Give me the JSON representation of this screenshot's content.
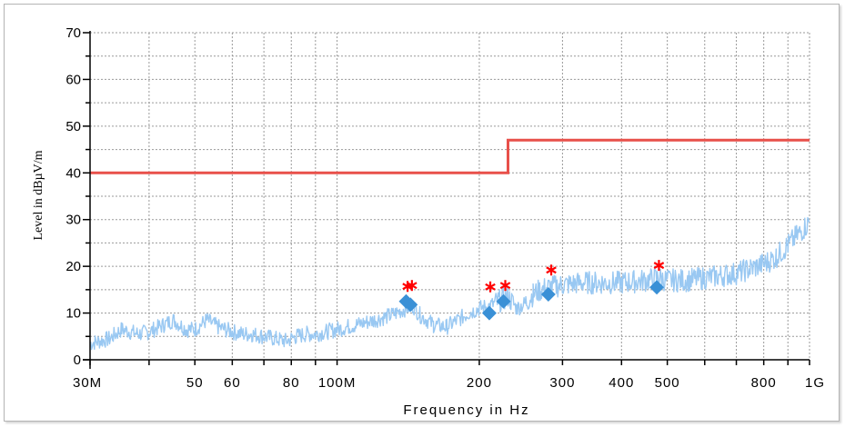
{
  "chart_data": {
    "type": "line",
    "x_scale": "log",
    "xlabel": "Frequency in Hz",
    "ylabel": "Level in dBµV/m",
    "xlim": [
      30000000,
      1000000000
    ],
    "ylim": [
      0,
      70
    ],
    "grid": true,
    "x_ticks": [
      {
        "value": 30000000,
        "label": "30M"
      },
      {
        "value": 50000000,
        "label": "50"
      },
      {
        "value": 60000000,
        "label": "60"
      },
      {
        "value": 80000000,
        "label": "80"
      },
      {
        "value": 100000000,
        "label": "100M"
      },
      {
        "value": 200000000,
        "label": "200"
      },
      {
        "value": 300000000,
        "label": "300"
      },
      {
        "value": 400000000,
        "label": "400"
      },
      {
        "value": 500000000,
        "label": "500"
      },
      {
        "value": 800000000,
        "label": "800"
      },
      {
        "value": 1000000000,
        "label": "1G"
      }
    ],
    "y_ticks": [
      0,
      10,
      20,
      30,
      40,
      50,
      60,
      70
    ],
    "series": [
      {
        "kind": "limit",
        "color": "#e8504a",
        "x": [
          30000000,
          230000000,
          230000000,
          1000000000
        ],
        "y": [
          40,
          40,
          47,
          47
        ]
      },
      {
        "kind": "spectrum",
        "color": "#99c8f2",
        "x": [
          30000000,
          33000000,
          35000000,
          38000000,
          40000000,
          43000000,
          45000000,
          48000000,
          50000000,
          53000000,
          56000000,
          60000000,
          63000000,
          66000000,
          70000000,
          74000000,
          78000000,
          82000000,
          86000000,
          90000000,
          95000000,
          100000000,
          110000000,
          120000000,
          130000000,
          140000000,
          145000000,
          150000000,
          160000000,
          170000000,
          180000000,
          190000000,
          200000000,
          210000000,
          220000000,
          230000000,
          240000000,
          250000000,
          260000000,
          270000000,
          280000000,
          300000000,
          330000000,
          360000000,
          400000000,
          450000000,
          480000000,
          500000000,
          550000000,
          600000000,
          650000000,
          700000000,
          750000000,
          800000000,
          850000000,
          900000000,
          950000000,
          1000000000
        ],
        "y": [
          3.5,
          4.5,
          6.5,
          5.5,
          6,
          7.5,
          8.5,
          6.5,
          6.5,
          8.5,
          7,
          6,
          5.5,
          5.5,
          5,
          4.5,
          4,
          5,
          5.5,
          5.5,
          6,
          6.5,
          7.5,
          8.5,
          9.5,
          11,
          11.5,
          9.5,
          7.5,
          7,
          8.5,
          10,
          11,
          11.5,
          12.5,
          13.5,
          11,
          12,
          14,
          15,
          15.5,
          16,
          16.5,
          16.5,
          16.5,
          17,
          17.5,
          17,
          17,
          17.5,
          18,
          18.5,
          19.5,
          20.5,
          22,
          24.5,
          27,
          29.5
        ]
      },
      {
        "kind": "quasi-peak",
        "color": "#3a90d6",
        "x": [
          140000000,
          143000000,
          210000000,
          225000000,
          280000000,
          475000000
        ],
        "y": [
          12.5,
          11.8,
          10,
          12.5,
          14,
          15.5
        ]
      },
      {
        "kind": "peak",
        "color": "#ff0000",
        "x": [
          141000000,
          144000000,
          211000000,
          227000000,
          284000000,
          480000000
        ],
        "y": [
          15.7,
          15.9,
          15.6,
          15.9,
          19.2,
          20.2
        ]
      }
    ]
  }
}
